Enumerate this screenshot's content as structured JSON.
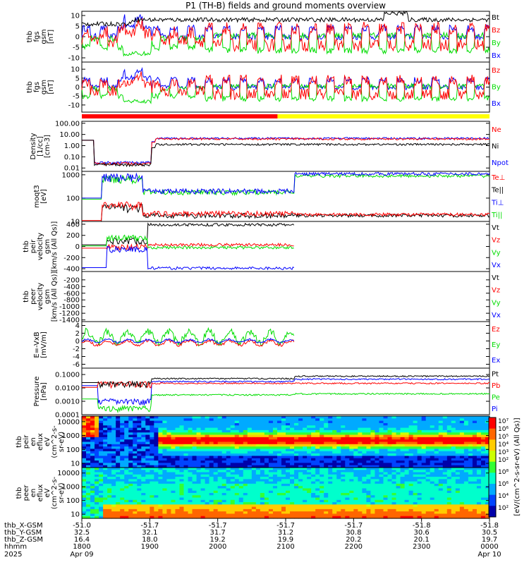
{
  "title": "P1 (TH-B) fields and ground moments overview",
  "colors": {
    "black": "#000000",
    "red": "#ff0000",
    "green": "#00dd00",
    "blue": "#0000ff",
    "yellow": "#ffff00"
  },
  "chart_data": [
    {
      "type": "line",
      "id": "fgs_all",
      "ylabel": [
        "thb",
        "fgs",
        "gsm",
        "[nT]"
      ],
      "ylim": [
        -12,
        12
      ],
      "ticks": [
        10,
        5,
        0,
        -5,
        -10
      ],
      "series": [
        {
          "name": "Bt",
          "color": "black"
        },
        {
          "name": "Bz",
          "color": "red"
        },
        {
          "name": "By",
          "color": "green"
        },
        {
          "name": "Bx",
          "color": "blue"
        }
      ]
    },
    {
      "type": "line",
      "id": "fgs_comp",
      "ylabel": [
        "thb",
        "fgs",
        "gsm",
        "[nT]"
      ],
      "ylim": [
        -14,
        14
      ],
      "ticks": [
        10,
        5,
        0,
        -5,
        -10
      ],
      "series": [
        {
          "name": "Bz",
          "color": "red"
        },
        {
          "name": "By",
          "color": "green"
        },
        {
          "name": "Bx",
          "color": "blue"
        }
      ]
    },
    {
      "type": "bar",
      "id": "mode_bar",
      "segments": [
        {
          "from": 0,
          "to": 0.48,
          "color": "red"
        },
        {
          "from": 0.48,
          "to": 1,
          "color": "yellow"
        }
      ]
    },
    {
      "type": "line",
      "id": "density",
      "ylabel": [
        "Density",
        "[1/cc]",
        "[cm-3]"
      ],
      "scale": "log",
      "ylim": [
        0.005,
        150
      ],
      "ticks": [
        "100.00",
        "10.00",
        "1.00",
        "0.10",
        "0.01"
      ],
      "series": [
        {
          "name": "Ne",
          "color": "red"
        },
        {
          "name": "Ni",
          "color": "black"
        },
        {
          "name": "Npot",
          "color": "blue"
        }
      ]
    },
    {
      "type": "line",
      "id": "temp",
      "ylabel": [
        "moqt3",
        "[eV]"
      ],
      "scale": "log",
      "ylim": [
        10,
        1400
      ],
      "ticks": [
        "1000",
        "100",
        "10"
      ],
      "series": [
        {
          "name": "Te⊥",
          "color": "red"
        },
        {
          "name": "Te||",
          "color": "black"
        },
        {
          "name": "Ti⊥",
          "color": "blue"
        },
        {
          "name": "Ti||",
          "color": "green"
        }
      ]
    },
    {
      "type": "line",
      "id": "peir_vel",
      "ylabel": [
        "thb",
        "peir",
        "velocity",
        "gsm",
        "[km/s (All Qs)]"
      ],
      "ylim": [
        -450,
        450
      ],
      "ticks": [
        400,
        200,
        0,
        -200,
        -400
      ],
      "series": [
        {
          "name": "Vt",
          "color": "black"
        },
        {
          "name": "Vz",
          "color": "red"
        },
        {
          "name": "Vy",
          "color": "green"
        },
        {
          "name": "Vx",
          "color": "blue"
        }
      ]
    },
    {
      "type": "line",
      "id": "peer_vel",
      "ylabel": [
        "thb",
        "peer",
        "velocity",
        "gsm",
        "[km/s (All Qs)]"
      ],
      "ylim": [
        -1450,
        50
      ],
      "ticks": [
        -200,
        -400,
        -600,
        -800,
        -1000,
        -1200,
        -1400
      ],
      "series": [
        {
          "name": "Vt",
          "color": "black"
        },
        {
          "name": "Vz",
          "color": "red"
        },
        {
          "name": "Vy",
          "color": "green"
        },
        {
          "name": "Vx",
          "color": "blue"
        }
      ]
    },
    {
      "type": "line",
      "id": "efield",
      "ylabel": [
        "E=-VxB",
        "[mV/m]"
      ],
      "ylim": [
        -7,
        5
      ],
      "ticks": [
        4,
        2,
        0,
        -2,
        -4,
        -6
      ],
      "series": [
        {
          "name": "Ez",
          "color": "red"
        },
        {
          "name": "Ey",
          "color": "green"
        },
        {
          "name": "Ex",
          "color": "blue"
        }
      ]
    },
    {
      "type": "line",
      "id": "pressure",
      "ylabel": [
        "Pressure",
        "[nPa]"
      ],
      "scale": "log",
      "ylim": [
        0.0001,
        0.3
      ],
      "ticks": [
        "0.1000",
        "0.0100",
        "0.0010",
        "0.0001"
      ],
      "series": [
        {
          "name": "Pt",
          "color": "black"
        },
        {
          "name": "Pb",
          "color": "red"
        },
        {
          "name": "Pe",
          "color": "green"
        },
        {
          "name": "Pi",
          "color": "blue"
        }
      ]
    },
    {
      "type": "heatmap",
      "id": "peir_en",
      "ylabel": [
        "thb",
        "peir",
        "en",
        "eflux",
        "eV",
        "(cm^2-s-",
        "sr-eV)"
      ],
      "ticks": [
        "10000",
        "1000",
        "100",
        "10"
      ]
    },
    {
      "type": "heatmap",
      "id": "peer_en",
      "ylabel": [
        "thb",
        "peer",
        "en",
        "eflux",
        "eV",
        "(cm^2-s-",
        "sr-eV)"
      ],
      "ticks": [
        "10000",
        "1000",
        "100",
        "10"
      ]
    }
  ],
  "colorbar": {
    "label": "[eV/(cm^2-s-sr-eV) (All Qs)]",
    "ticks_top": [
      "10⁷",
      "10⁶",
      "10⁵",
      "10⁴",
      "10³",
      "10²"
    ],
    "ticks_bottom": [
      "10⁸",
      "10⁶",
      "10⁴",
      "10²"
    ]
  },
  "xaxis": {
    "row_labels": [
      "thb_X-GSM",
      "thb_Y-GSM",
      "thb_Z-GSM",
      "hhmm",
      "2025"
    ],
    "ticks": [
      {
        "x": "-51.0",
        "y": "32.5",
        "z": "16.4",
        "t": "1800",
        "d": "Apr 09"
      },
      {
        "x": "-51.7",
        "y": "32.1",
        "z": "18.0",
        "t": "1900",
        "d": ""
      },
      {
        "x": "-51.7",
        "y": "31.7",
        "z": "19.2",
        "t": "2000",
        "d": ""
      },
      {
        "x": "-51.7",
        "y": "31.2",
        "z": "19.9",
        "t": "2100",
        "d": ""
      },
      {
        "x": "-51.7",
        "y": "30.8",
        "z": "20.2",
        "t": "2200",
        "d": ""
      },
      {
        "x": "-51.8",
        "y": "30.6",
        "z": "20.1",
        "t": "2300",
        "d": ""
      },
      {
        "x": "-51.8",
        "y": "30.5",
        "z": "19.7",
        "t": "0000",
        "d": "Apr 10"
      }
    ]
  }
}
